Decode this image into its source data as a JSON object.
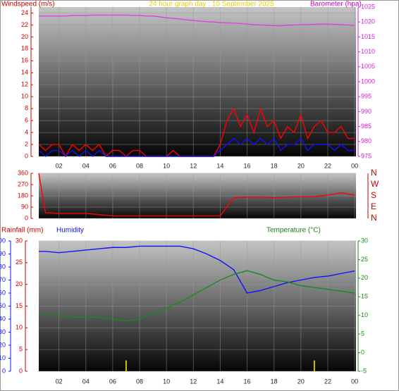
{
  "chart_data": [
    {
      "type": "line",
      "title": "24 hour graph day : 10 September 2025",
      "ylabel": "Windspeed (m/s)",
      "y2label": "Barometer (hpa)",
      "xlim": [
        0.5,
        24.1
      ],
      "xticks": [
        {
          "value": 2,
          "label": "02"
        },
        {
          "value": 4,
          "label": "04"
        },
        {
          "value": 6,
          "label": "06"
        },
        {
          "value": 8,
          "label": "08"
        },
        10,
        12,
        14,
        16,
        18,
        20,
        22,
        {
          "value": 24,
          "label": "00"
        }
      ],
      "ylim": [
        0,
        25
      ],
      "yticks": [
        0,
        2,
        4,
        6,
        8,
        10,
        12,
        14,
        16,
        18,
        20,
        22,
        24
      ],
      "y2lim": [
        975,
        1025
      ],
      "y2ticks": [
        975,
        980,
        985,
        990,
        995,
        1000,
        1005,
        1010,
        1015,
        1020,
        1025
      ],
      "grid": true,
      "x": [
        0.5,
        1,
        1.5,
        2,
        2.5,
        3,
        3.5,
        4,
        4.5,
        5,
        5.5,
        6,
        6.5,
        7,
        7.5,
        8,
        8.5,
        9,
        9.5,
        10,
        10.5,
        11,
        11.5,
        12,
        12.5,
        13,
        13.5,
        14,
        14.5,
        15,
        15.5,
        16,
        16.5,
        17,
        17.5,
        18,
        18.5,
        19,
        19.5,
        20,
        20.5,
        21,
        21.5,
        22,
        22.5,
        23,
        23.5,
        24
      ],
      "series": [
        {
          "color": "#ff0000",
          "values": [
            2,
            1,
            2,
            2,
            0,
            2,
            1,
            2,
            1,
            2,
            0,
            1,
            1,
            0,
            1,
            1,
            0,
            0,
            0,
            0,
            1,
            0,
            0,
            0,
            0,
            0,
            0,
            2,
            6,
            8,
            5,
            7,
            4,
            8,
            5,
            6,
            3,
            5,
            4,
            7,
            3,
            5,
            6,
            4,
            4,
            5,
            3,
            3
          ]
        },
        {
          "color": "#1010ff",
          "values": [
            1,
            0,
            1,
            1,
            0,
            1,
            0,
            1,
            0,
            1,
            0,
            0,
            0,
            0,
            0,
            0,
            0,
            0,
            0,
            0,
            0,
            0,
            0,
            0,
            0,
            0,
            0,
            1,
            2,
            3,
            2,
            3,
            2,
            3,
            2,
            3,
            1,
            2,
            2,
            3,
            1,
            2,
            2,
            2,
            1,
            2,
            1,
            1
          ]
        },
        {
          "color": "#e040e0",
          "axis": "y2",
          "values": [
            1022,
            1022,
            1022,
            1022,
            1022,
            1022.2,
            1022.2,
            1022.2,
            1022.3,
            1022.3,
            1022.3,
            1022.3,
            1022.3,
            1022.3,
            1022.2,
            1022.2,
            1022,
            1022,
            1021.7,
            1021.4,
            1021.2,
            1021,
            1020.7,
            1020.5,
            1020.3,
            1020.1,
            1020,
            1019.8,
            1019.7,
            1019.6,
            1019.5,
            1019.3,
            1019.1,
            1019,
            1018.9,
            1018.8,
            1018.7,
            1018.9,
            1019,
            1019.1,
            1019.1,
            1019.2,
            1019.3,
            1019.3,
            1019.2,
            1019.1,
            1019,
            1018.8
          ]
        }
      ]
    },
    {
      "type": "line",
      "xlim": [
        0.5,
        24.1
      ],
      "ylim": [
        0,
        360
      ],
      "yticks": [
        0,
        90,
        180,
        270,
        360
      ],
      "y2lim": [
        0,
        360
      ],
      "y2ticks": [
        {
          "value": 0,
          "label": "N"
        },
        {
          "value": 90,
          "label": "E"
        },
        {
          "value": 180,
          "label": "S"
        },
        {
          "value": 270,
          "label": "W"
        },
        {
          "value": 360,
          "label": "N"
        }
      ],
      "grid": true,
      "x": [
        0.5,
        1,
        2,
        3,
        4,
        5,
        6,
        7,
        8,
        9,
        10,
        11,
        12,
        13,
        14,
        15,
        16,
        17,
        18,
        19,
        20,
        21,
        22,
        23,
        24
      ],
      "series": [
        {
          "color": "#ff0000",
          "values": [
            360,
            45,
            40,
            40,
            40,
            30,
            20,
            20,
            20,
            20,
            20,
            20,
            20,
            20,
            20,
            165,
            170,
            170,
            165,
            170,
            175,
            175,
            185,
            205,
            185
          ]
        }
      ]
    },
    {
      "type": "line",
      "ylabel": "Rainfall (mm)",
      "y3label": "Humidity",
      "y2label": "Temperature (°C)",
      "xlim": [
        0.5,
        24.1
      ],
      "xticks": [
        {
          "value": 2,
          "label": "02"
        },
        {
          "value": 4,
          "label": "04"
        },
        {
          "value": 6,
          "label": "06"
        },
        {
          "value": 8,
          "label": "08"
        },
        10,
        12,
        14,
        16,
        18,
        20,
        22,
        {
          "value": 24,
          "label": "00"
        }
      ],
      "ylim": [
        0,
        30
      ],
      "yticks": [
        0,
        5,
        10,
        15,
        20,
        25,
        30
      ],
      "y3lim": [
        0,
        100
      ],
      "y3ticks": [
        0,
        10,
        20,
        30,
        40,
        50,
        60,
        70,
        80,
        90,
        100
      ],
      "y2lim": [
        -5,
        30
      ],
      "y2ticks": [
        -5,
        0,
        5,
        10,
        15,
        20,
        25,
        30
      ],
      "grid": true,
      "x": [
        0.5,
        1,
        2,
        3,
        4,
        5,
        6,
        7,
        8,
        9,
        10,
        11,
        12,
        13,
        14,
        15,
        16,
        17,
        18,
        19,
        20,
        21,
        22,
        23,
        24
      ],
      "series": [
        {
          "color": "#1010ff",
          "axis": "y3",
          "values": [
            92,
            92,
            91,
            92,
            93,
            94,
            95,
            95,
            96,
            96,
            96,
            96,
            94,
            90,
            85,
            78,
            60,
            62,
            65,
            68,
            70,
            72,
            73,
            75,
            77
          ]
        },
        {
          "color": "#1a8a1a",
          "axis": "y2",
          "values": [
            10,
            10,
            10,
            9.5,
            9.5,
            9.5,
            9,
            8.5,
            9,
            10.5,
            12,
            13.5,
            15.5,
            17.5,
            19.5,
            21,
            22,
            21,
            19.5,
            19,
            18,
            17.5,
            17,
            16.5,
            16
          ]
        },
        {
          "type": "bar",
          "color": "#d4c000",
          "x": [
            7,
            21
          ],
          "values": [
            2.5,
            2.5
          ]
        }
      ]
    }
  ]
}
